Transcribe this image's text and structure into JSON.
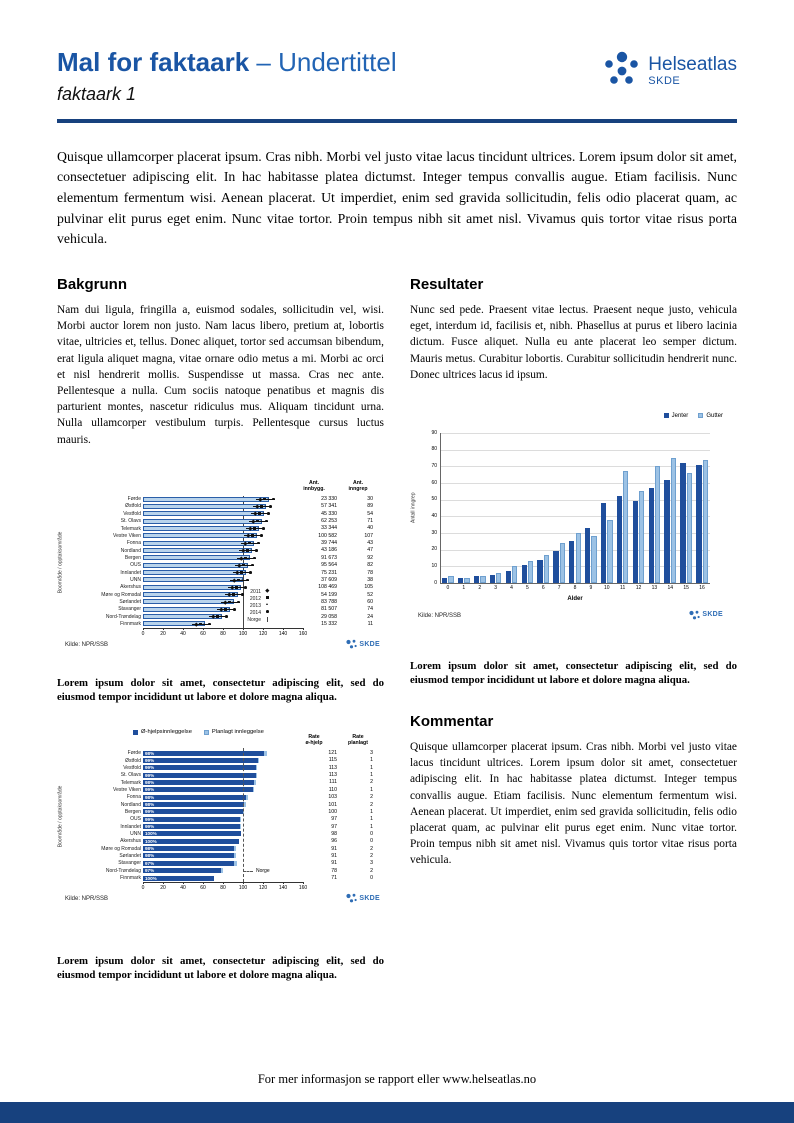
{
  "header": {
    "title": "Mal for faktaark",
    "title_suffix": "– Undertittel",
    "subtitle": "faktaark 1",
    "logo_name": "Helseatlas",
    "logo_sub": "SKDE"
  },
  "brand": {
    "skde_mini": "SKDE",
    "blue_dark": "#1f4e9c",
    "blue_light": "#9cc2e5",
    "navy": "#17417e"
  },
  "intro": "Quisque ullamcorper placerat ipsum. Cras nibh. Morbi vel justo vitae lacus tincidunt ultrices. Lorem ipsum dolor sit amet, consectetuer adipiscing elit. In hac habitasse platea dictumst. Integer tempus convallis augue. Etiam facilisis. Nunc elementum fermentum wisi. Aenean placerat. Ut imperdiet, enim sed gravida sollicitudin, felis odio placerat quam, ac pulvinar elit purus eget enim. Nunc vitae tortor. Proin tempus nibh sit amet nisl. Vivamus quis tortor vitae risus porta vehicula.",
  "sections": {
    "bakgrunn": {
      "heading": "Bakgrunn",
      "body": "Nam dui ligula, fringilla a, euismod sodales, sollicitudin vel, wisi. Morbi auctor lorem non justo. Nam lacus libero, pretium at, lobortis vitae, ultricies et, tellus. Donec aliquet, tortor sed accumsan bibendum, erat ligula aliquet magna, vitae ornare odio metus a mi. Morbi ac orci et nisl hendrerit mollis. Suspendisse ut massa. Cras nec ante. Pellentesque a nulla. Cum sociis natoque penatibus et magnis dis parturient montes, nascetur ridiculus mus. Aliquam tincidunt urna. Nulla ullamcorper vestibulum turpis. Pellentesque cursus luctus mauris."
    },
    "resultater": {
      "heading": "Resultater",
      "body": "Nunc sed pede. Praesent vitae lectus. Praesent neque justo, vehicula eget, interdum id, facilisis et, nibh. Phasellus at purus et libero lacinia dictum. Fusce aliquet. Nulla eu ante placerat leo semper dictum. Mauris metus. Curabitur lobortis. Curabitur sollicitudin hendrerit nunc. Donec ultrices lacus id ipsum."
    },
    "kommentar": {
      "heading": "Kommentar",
      "body": "Quisque ullamcorper placerat ipsum. Cras nibh. Morbi vel justo vitae lacus tincidunt ultrices. Lorem ipsum dolor sit amet, consectetuer adipiscing elit. In hac habitasse platea dictumst. Integer tempus convallis augue. Etiam facilisis. Nunc elementum fermentum wisi. Aenean placerat. Ut imperdiet, enim sed gravida sollicitudin, felis odio placerat quam, ac pulvinar elit purus eget enim. Nunc vitae tortor. Proin tempus nibh sit amet nisl. Vivamus quis tortor vitae risus porta vehicula."
    }
  },
  "captions": {
    "chart1": "Lorem ipsum dolor sit amet, consectetur adipiscing elit, sed do eiusmod tempor incididunt ut labore et dolore magna aliqua.",
    "chart2": "Lorem ipsum dolor sit amet, consectetur adipiscing elit, sed do eiusmod tempor incididunt ut labore et dolore magna aliqua.",
    "chart3": "Lorem ipsum dolor sit amet, consectetur adipiscing elit, sed do eiusmod tempor incididunt ut labore et dolore magna aliqua."
  },
  "footer": {
    "text": "For mer informasjon se rapport eller www.helseatlas.no"
  },
  "chart_data": [
    {
      "type": "bar",
      "orientation": "horizontal",
      "ylabel": "Boområde / opptaksområde",
      "xlim": [
        0,
        160
      ],
      "xticks": [
        0,
        20,
        40,
        60,
        80,
        100,
        120,
        140,
        160
      ],
      "col_headers": [
        [
          "Ant.",
          "innbygg."
        ],
        [
          "Ant.",
          "inngrep"
        ]
      ],
      "legend": [
        "2011",
        "2012",
        "2013",
        "2014",
        "Norge"
      ],
      "source": "Kilde: NPR/SSB",
      "regions": [
        "Førde",
        "Østfold",
        "Vestfold",
        "St. Olavs",
        "Telemark",
        "Vestre Viken",
        "Fonna",
        "Nordland",
        "Bergen",
        "OUS",
        "Innlandet",
        "UNN",
        "Akershus",
        "Møre og Romsdal",
        "Sørlandet",
        "Stavanger",
        "Nord-Trøndelag",
        "Finnmark"
      ],
      "rates": [
        126,
        123,
        121,
        119,
        116,
        114,
        111,
        109,
        107,
        105,
        103,
        100,
        98,
        95,
        91,
        87,
        79,
        62
      ],
      "innbygg": [
        "23 330",
        "57 341",
        "45 330",
        "62 253",
        "33 344",
        "100 582",
        "39 744",
        "43 186",
        "91 673",
        "95 564",
        "75 231",
        "37 609",
        "108 469",
        "54 199",
        "83 788",
        "81 507",
        "29 058",
        "15 332"
      ],
      "inngrep": [
        30,
        89,
        54,
        71,
        40,
        107,
        43,
        47,
        92,
        82,
        78,
        38,
        105,
        52,
        60,
        74,
        24,
        11
      ],
      "norge_line": 100
    },
    {
      "type": "bar",
      "orientation": "vertical",
      "categories": [
        0,
        1,
        2,
        3,
        4,
        5,
        6,
        7,
        8,
        9,
        10,
        11,
        12,
        13,
        14,
        15,
        16
      ],
      "series": [
        {
          "name": "Jenter",
          "values": [
            3,
            3,
            4,
            5,
            7,
            11,
            14,
            19,
            25,
            33,
            48,
            52,
            49,
            57,
            62,
            72,
            71
          ]
        },
        {
          "name": "Gutter",
          "values": [
            4,
            3,
            4,
            6,
            10,
            13,
            17,
            24,
            30,
            28,
            38,
            67,
            55,
            70,
            75,
            66,
            74
          ]
        }
      ],
      "colors": [
        "#1f4e9c",
        "#9cc2e5"
      ],
      "ylabel": "Antall inngrep",
      "xlabel": "Alder",
      "ylim": [
        0,
        90
      ],
      "yticks": [
        0,
        10,
        20,
        30,
        40,
        50,
        60,
        70,
        80,
        90
      ],
      "grid": true,
      "legend_position": "top-right",
      "source": "Kilde: NPR/SSB"
    },
    {
      "type": "bar",
      "orientation": "horizontal",
      "stacked": true,
      "legend": [
        "Ø-hjelpsinnleggelse",
        "Planlagt innleggelse"
      ],
      "colors": [
        "#1f4e9c",
        "#9cc2e5"
      ],
      "ylabel": "Boområde / opptaksområde",
      "xlim": [
        0,
        160
      ],
      "xticks": [
        0,
        20,
        40,
        60,
        80,
        100,
        120,
        140,
        160
      ],
      "col_headers": [
        [
          "Rate",
          "ø-hjelp"
        ],
        [
          "Rate",
          "planlagt"
        ]
      ],
      "regions": [
        "Førde",
        "Østfold",
        "Vestfold",
        "St. Olavs",
        "Telemark",
        "Vestre Viken",
        "Fonna",
        "Nordland",
        "Bergen",
        "OUS",
        "Innlandet",
        "UNN",
        "Akershus",
        "Møre og Romsdal",
        "Sørlandet",
        "Stavanger",
        "Nord-Trøndelag",
        "Finnmark"
      ],
      "pct": [
        "98%",
        "99%",
        "99%",
        "99%",
        "98%",
        "99%",
        "98%",
        "98%",
        "99%",
        "99%",
        "99%",
        "100%",
        "100%",
        "98%",
        "98%",
        "97%",
        "97%",
        "100%"
      ],
      "rate_ohjelp": [
        121,
        115,
        113,
        113,
        111,
        110,
        103,
        101,
        100,
        97,
        97,
        98,
        96,
        91,
        91,
        91,
        78,
        71
      ],
      "rate_planlagt": [
        3,
        1,
        1,
        1,
        2,
        1,
        2,
        2,
        1,
        1,
        1,
        0,
        0,
        2,
        2,
        3,
        2,
        0
      ],
      "norge_line": 100,
      "norge_label": "Norge",
      "source": "Kilde: NPR/SSB"
    }
  ]
}
